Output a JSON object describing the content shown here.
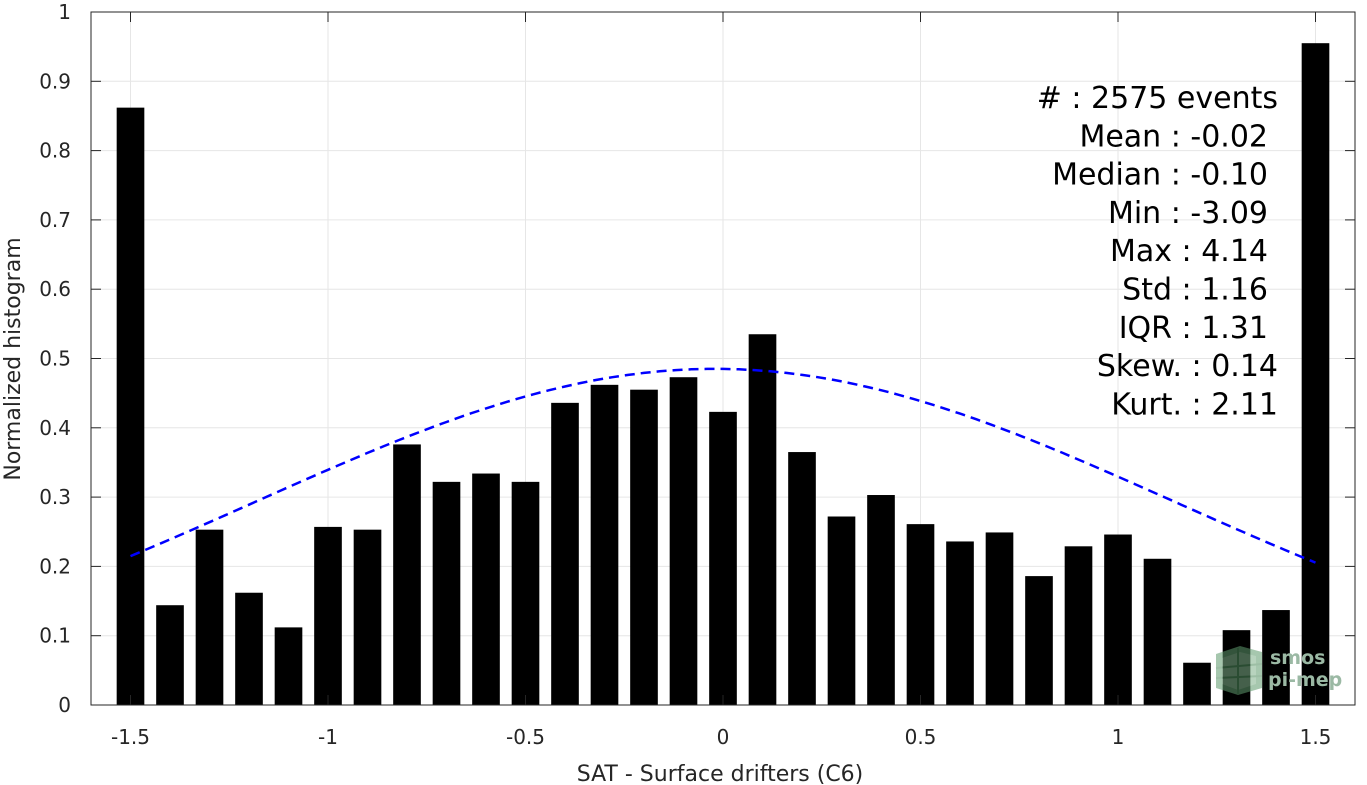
{
  "chart_data": {
    "type": "bar",
    "xlabel": "SAT - Surface drifters (C6)",
    "ylabel": "Normalized histogram",
    "xlim": [
      -1.6,
      1.6
    ],
    "ylim": [
      0,
      1
    ],
    "xticks": [
      -1.5,
      -1,
      -0.5,
      0,
      0.5,
      1,
      1.5
    ],
    "xtick_labels": [
      "-1.5",
      "-1",
      "-0.5",
      "0",
      "0.5",
      "1",
      "1.5"
    ],
    "yticks": [
      0,
      0.1,
      0.2,
      0.3,
      0.4,
      0.5,
      0.6,
      0.7,
      0.8,
      0.9,
      1
    ],
    "ytick_labels": [
      "0",
      "0.1",
      "0.2",
      "0.3",
      "0.4",
      "0.5",
      "0.6",
      "0.7",
      "0.8",
      "0.9",
      "1"
    ],
    "grid": true,
    "bar_width": 0.07,
    "x": [
      -1.5,
      -1.4,
      -1.3,
      -1.2,
      -1.1,
      -1.0,
      -0.9,
      -0.8,
      -0.7,
      -0.6,
      -0.5,
      -0.4,
      -0.3,
      -0.2,
      -0.1,
      0.0,
      0.1,
      0.2,
      0.3,
      0.4,
      0.5,
      0.6,
      0.7,
      0.8,
      0.9,
      1.0,
      1.1,
      1.2,
      1.3,
      1.4,
      1.5
    ],
    "values": [
      0.862,
      0.144,
      0.253,
      0.162,
      0.112,
      0.257,
      0.253,
      0.376,
      0.322,
      0.334,
      0.322,
      0.436,
      0.462,
      0.455,
      0.473,
      0.423,
      0.535,
      0.365,
      0.272,
      0.303,
      0.261,
      0.236,
      0.249,
      0.186,
      0.229,
      0.246,
      0.211,
      0.061,
      0.108,
      0.137,
      0.955
    ],
    "bar_color": "#000000",
    "fit": {
      "style": "dashed",
      "color": "#0000ff",
      "x_range": [
        -1.5,
        1.5
      ],
      "mu": -0.02,
      "sigma": 1.16,
      "peak": 0.485
    },
    "stats": [
      "#  : 2575 events",
      "Mean : -0.02",
      "Median : -0.10",
      "Min : -3.09",
      "Max : 4.14",
      "Std : 1.16",
      "IQR : 1.31",
      "Skew. : 0.14",
      "Kurt. : 2.11"
    ]
  },
  "watermark": {
    "line1": "smos",
    "line2": "pi-mep",
    "color": "#9bb9a4"
  }
}
